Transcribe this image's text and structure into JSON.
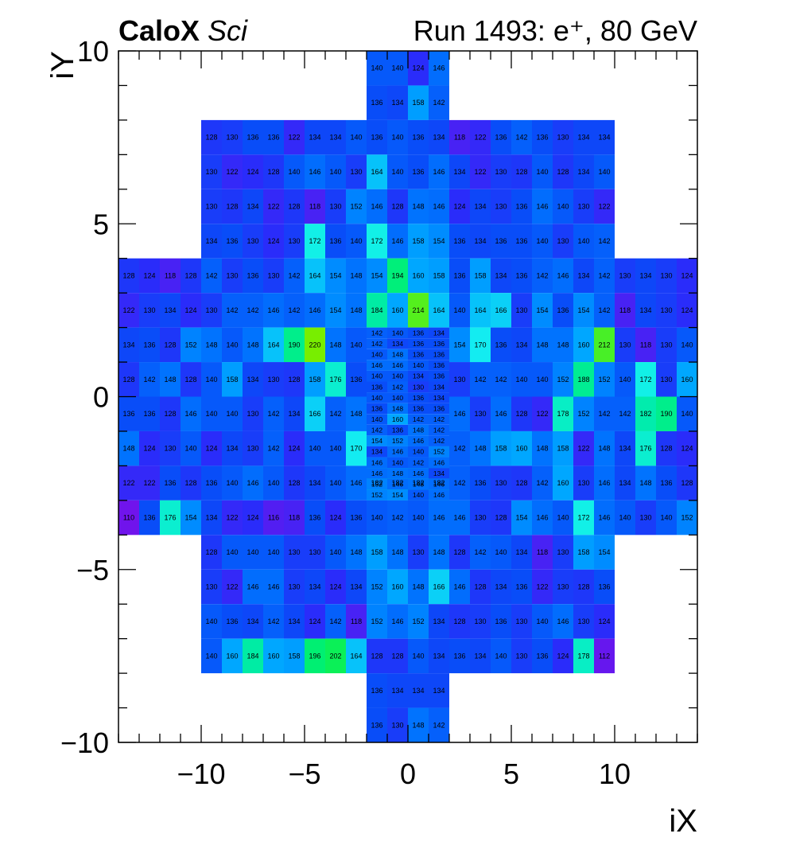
{
  "chart_data": {
    "type": "heatmap",
    "title": "Run 1493: e⁺, 80 GeV",
    "brand": "CaloX",
    "brand_sub": "Sci",
    "xlabel": "iX",
    "ylabel": "iY",
    "xlim": [
      -14,
      14
    ],
    "ylim": [
      -10,
      10
    ],
    "xticks": [
      -10,
      -5,
      0,
      5,
      10
    ],
    "yticks": [
      -10,
      -5,
      0,
      5,
      10
    ],
    "xtick_labels": [
      "−10",
      "−5",
      "0",
      "5",
      "10"
    ],
    "ytick_labels": [
      "−10",
      "−5",
      "0",
      "5",
      "10"
    ],
    "colorscale": {
      "min": 110,
      "max": 220
    },
    "rows": [
      {
        "y0": 9,
        "x0": -2,
        "values": [
          140,
          140,
          124,
          146
        ]
      },
      {
        "y0": 8,
        "x0": -2,
        "values": [
          136,
          134,
          158,
          142
        ]
      },
      {
        "y0": 7,
        "x0": -10,
        "values": [
          128,
          130,
          136,
          136,
          122,
          134,
          134,
          140,
          136,
          140,
          136,
          134,
          118,
          122,
          136,
          142,
          136,
          130,
          134,
          134
        ]
      },
      {
        "y0": 6,
        "x0": -10,
        "values": [
          130,
          122,
          124,
          128,
          140,
          146,
          140,
          130,
          164,
          140,
          136,
          146,
          134,
          122,
          130,
          128,
          140,
          128,
          134,
          140
        ]
      },
      {
        "y0": 5,
        "x0": -10,
        "values": [
          130,
          128,
          134,
          122,
          128,
          118,
          130,
          152,
          146,
          128,
          148,
          146,
          124,
          134,
          130,
          136,
          146,
          140,
          130,
          122
        ]
      },
      {
        "y0": 4,
        "x0": -10,
        "values": [
          134,
          136,
          130,
          124,
          130,
          172,
          136,
          140,
          172,
          146,
          158,
          154,
          136,
          134,
          136,
          136,
          140,
          130,
          140,
          142
        ]
      },
      {
        "y0": 3,
        "x0": -14,
        "values": [
          128,
          124,
          118,
          128,
          142,
          130,
          136,
          130,
          142,
          164,
          154,
          148,
          154,
          194,
          160,
          158,
          136,
          158,
          134,
          136,
          142,
          146,
          134,
          142,
          130,
          134,
          130,
          124
        ]
      },
      {
        "y0": 2,
        "x0": -14,
        "values": [
          122,
          130,
          134,
          124,
          130,
          142,
          142,
          146,
          142,
          146,
          154,
          148,
          184,
          160,
          214,
          164,
          140,
          164,
          166,
          130,
          154,
          136,
          154,
          142,
          118,
          134,
          130,
          124
        ]
      },
      {
        "y0": 1,
        "x0": -14,
        "values": [
          134,
          136,
          128,
          152,
          148,
          140,
          148,
          164,
          190,
          220,
          148,
          140,
          null,
          null,
          null,
          null,
          154,
          170,
          136,
          134,
          148,
          148,
          160,
          212,
          130,
          118,
          130,
          140
        ]
      },
      {
        "y0": 0,
        "x0": -14,
        "values": [
          128,
          142,
          148,
          128,
          140,
          158,
          134,
          130,
          128,
          158,
          176,
          136,
          null,
          null,
          null,
          null,
          130,
          142,
          142,
          140,
          140,
          152,
          188,
          152,
          140,
          172,
          130,
          160
        ]
      },
      {
        "y0": -1,
        "x0": -14,
        "values": [
          136,
          136,
          128,
          146,
          140,
          140,
          130,
          142,
          134,
          166,
          142,
          148,
          null,
          null,
          null,
          null,
          146,
          130,
          146,
          128,
          122,
          178,
          152,
          142,
          142,
          182,
          190,
          140
        ]
      },
      {
        "y0": -2,
        "x0": -14,
        "values": [
          148,
          124,
          130,
          140,
          124,
          134,
          130,
          142,
          124,
          140,
          140,
          170,
          null,
          null,
          null,
          null,
          142,
          148,
          158,
          160,
          148,
          158,
          122,
          148,
          134,
          176,
          128,
          124
        ]
      },
      {
        "y0": -3,
        "x0": -14,
        "values": [
          122,
          122,
          136,
          128,
          136,
          140,
          146,
          140,
          128,
          134,
          140,
          146,
          182,
          182,
          182,
          182,
          142,
          136,
          130,
          128,
          142,
          160,
          130,
          146,
          134,
          148,
          136,
          128
        ]
      },
      {
        "y0": -4,
        "x0": -14,
        "values": [
          110,
          136,
          176,
          154,
          134,
          122,
          124,
          116,
          118,
          136,
          124,
          136,
          140,
          142,
          140,
          146,
          146,
          130,
          128,
          154,
          146,
          140,
          172,
          146,
          140,
          130,
          140,
          152
        ]
      },
      {
        "y0": -5,
        "x0": -10,
        "values": [
          128,
          140,
          140,
          140,
          130,
          130,
          140,
          148,
          158,
          148,
          130,
          148,
          128,
          142,
          140,
          134,
          118,
          130,
          158,
          154
        ]
      },
      {
        "y0": -6,
        "x0": -10,
        "values": [
          130,
          122,
          146,
          146,
          130,
          134,
          124,
          134,
          152,
          160,
          148,
          166,
          146,
          128,
          134,
          136,
          122,
          130,
          128,
          136
        ]
      },
      {
        "y0": -7,
        "x0": -10,
        "values": [
          140,
          136,
          134,
          142,
          134,
          124,
          142,
          118,
          152,
          146,
          152,
          134,
          128,
          130,
          136,
          130,
          140,
          146,
          130,
          124
        ]
      },
      {
        "y0": -8,
        "x0": -10,
        "values": [
          140,
          160,
          184,
          160,
          158,
          196,
          202,
          164,
          128,
          128,
          140,
          134,
          136,
          134,
          140,
          130,
          136,
          124,
          178,
          112
        ]
      },
      {
        "y0": -9,
        "x0": -2,
        "values": [
          136,
          134,
          134,
          134
        ]
      },
      {
        "y0": -10,
        "x0": -2,
        "values": [
          136,
          130,
          148,
          142
        ]
      }
    ],
    "fine_region": {
      "x0": -2,
      "x1": 2,
      "y0": -3,
      "y1": 2,
      "cols": 4,
      "rows": [
        [
          142,
          140,
          136,
          134
        ],
        [
          142,
          134,
          136,
          136
        ],
        [
          140,
          148,
          136,
          136
        ],
        [
          146,
          146,
          140,
          136
        ],
        [
          140,
          140,
          134,
          136
        ],
        [
          136,
          142,
          130,
          134
        ],
        [
          140,
          140,
          136,
          134
        ],
        [
          136,
          148,
          136,
          136
        ],
        [
          140,
          160,
          142,
          142
        ],
        [
          142,
          136,
          148,
          142
        ],
        [
          154,
          152,
          146,
          142
        ],
        [
          134,
          146,
          140,
          152
        ],
        [
          146,
          140,
          142,
          146
        ],
        [
          146,
          148,
          146,
          134
        ],
        [
          152,
          146,
          148,
          146
        ],
        [
          152,
          154,
          140,
          146
        ]
      ]
    }
  }
}
